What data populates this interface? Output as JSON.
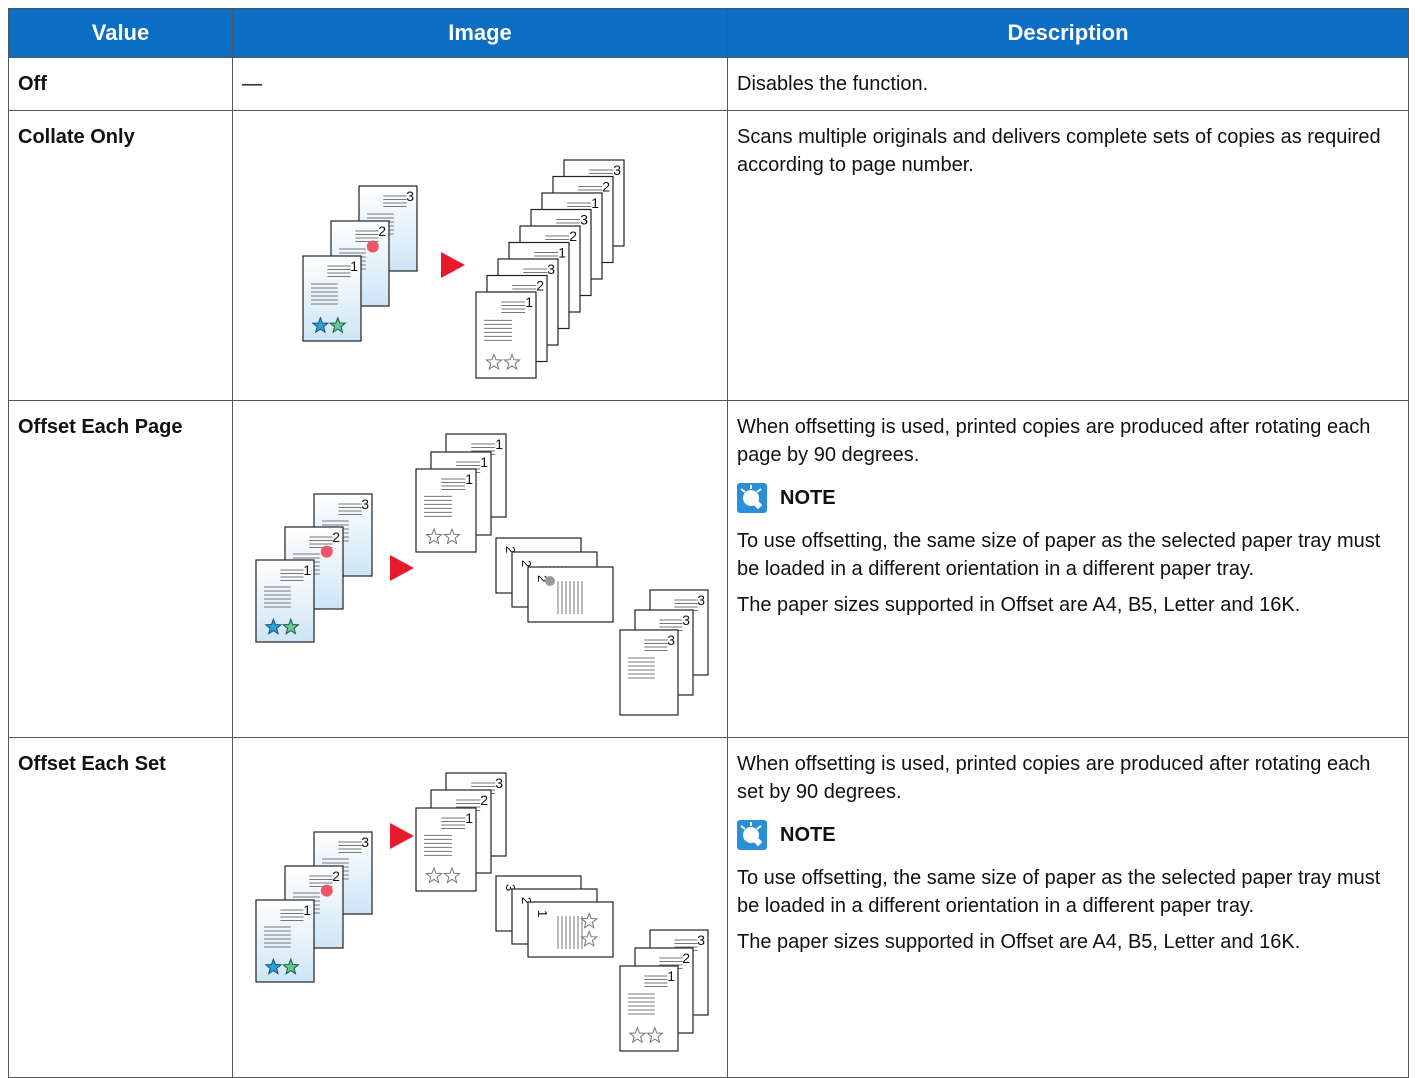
{
  "table": {
    "headers": [
      "Value",
      "Image",
      "Description"
    ],
    "rows": [
      {
        "value": "Off",
        "image": "—",
        "description": [
          "Disables the function."
        ]
      },
      {
        "value": "Collate Only",
        "description": [
          "Scans multiple originals and delivers complete sets of copies as required according to page number."
        ]
      },
      {
        "value": "Offset Each Page",
        "description": [
          "When offsetting is used, printed copies are produced after rotating each page by 90 degrees."
        ],
        "note": {
          "label": "NOTE",
          "paragraphs": [
            "To use offsetting, the same size of paper as the selected paper tray must be loaded in a different orientation in a different paper tray.",
            "The paper sizes supported in Offset are A4, B5, Letter and 16K."
          ]
        }
      },
      {
        "value": "Offset Each Set",
        "description": [
          "When offsetting is used, printed copies are produced after rotating each set by 90 degrees."
        ],
        "note": {
          "label": "NOTE",
          "paragraphs": [
            "To use offsetting, the same size of paper as the selected paper tray must be loaded in a different orientation in a different paper tray.",
            "The paper sizes supported in Offset are A4, B5, Letter and 16K."
          ]
        }
      }
    ]
  },
  "illustration": {
    "page_numbers": [
      "1",
      "2",
      "3"
    ]
  }
}
